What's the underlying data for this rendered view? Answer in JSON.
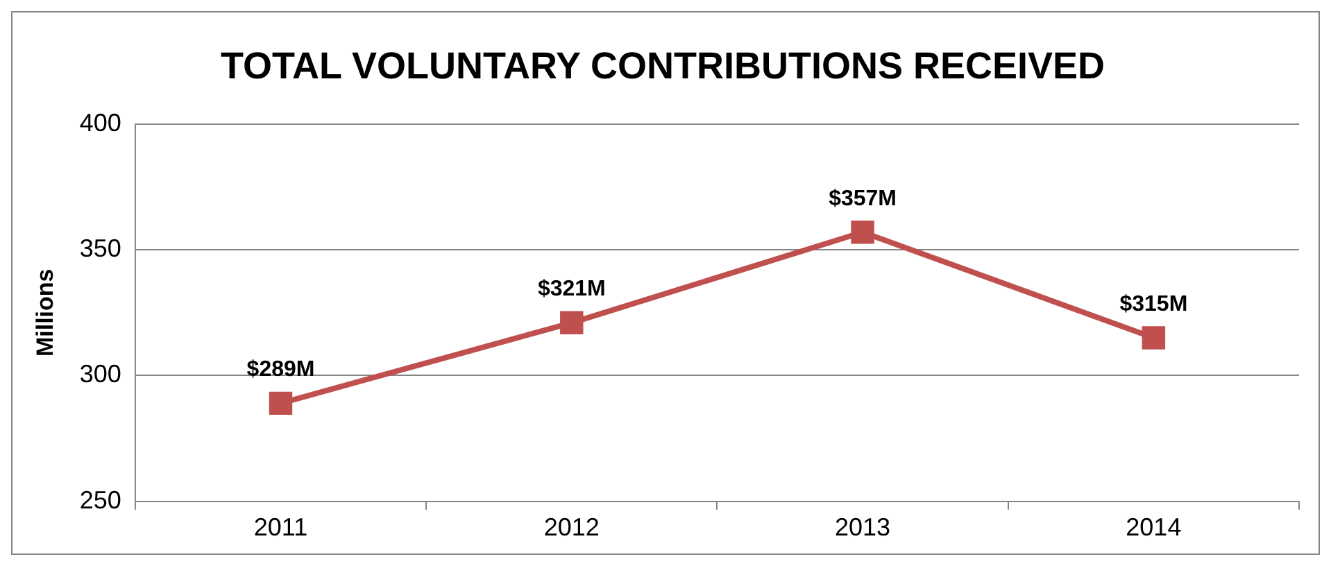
{
  "chart_data": {
    "type": "line",
    "title": "TOTAL VOLUNTARY CONTRIBUTIONS RECEIVED",
    "ylabel": "Millions",
    "categories": [
      "2011",
      "2012",
      "2013",
      "2014"
    ],
    "series": [
      {
        "color": "#c0504d",
        "values": [
          289,
          321,
          357,
          315
        ],
        "value_labels": [
          "$289M",
          "$321M",
          "$357M",
          "$315M"
        ]
      }
    ],
    "ylim": [
      250,
      400
    ],
    "yticks": [
      250,
      300,
      350,
      400
    ],
    "grid": "y",
    "legend": false,
    "marker": "square",
    "line_style": "solid"
  }
}
